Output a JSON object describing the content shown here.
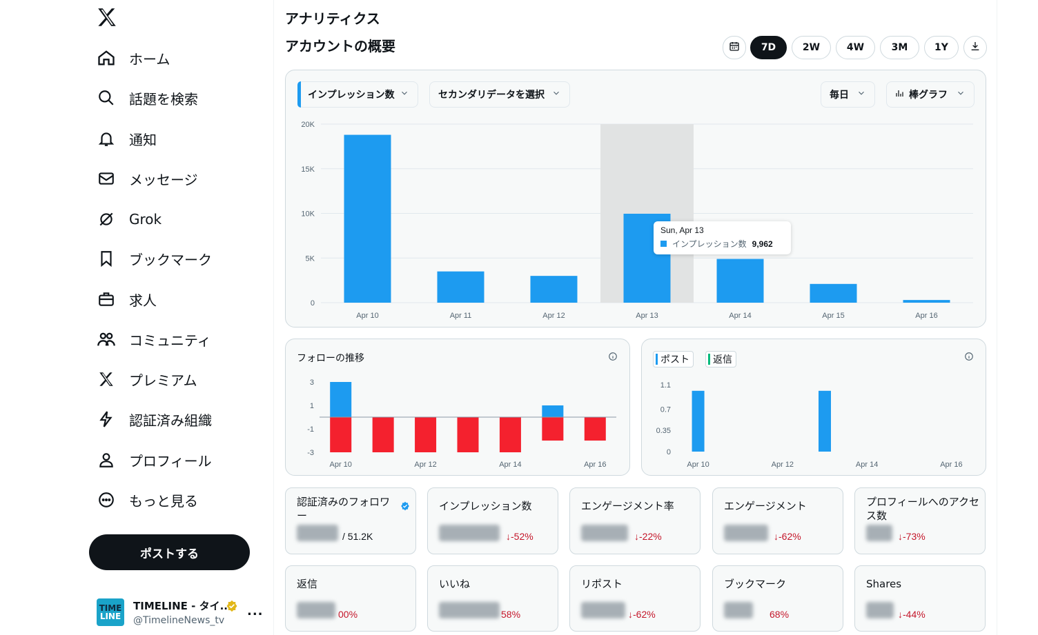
{
  "sidebar": {
    "items": [
      {
        "label": "ホーム",
        "icon": "home-icon"
      },
      {
        "label": "話題を検索",
        "icon": "search-icon"
      },
      {
        "label": "通知",
        "icon": "bell-icon"
      },
      {
        "label": "メッセージ",
        "icon": "mail-icon"
      },
      {
        "label": "Grok",
        "icon": "grok-icon"
      },
      {
        "label": "ブックマーク",
        "icon": "bookmark-icon"
      },
      {
        "label": "求人",
        "icon": "briefcase-icon"
      },
      {
        "label": "コミュニティ",
        "icon": "community-icon"
      },
      {
        "label": "プレミアム",
        "icon": "x-logo-icon"
      },
      {
        "label": "認証済み組織",
        "icon": "lightning-icon"
      },
      {
        "label": "プロフィール",
        "icon": "person-icon"
      },
      {
        "label": "もっと見る",
        "icon": "more-circle-icon"
      }
    ],
    "post_button": "ポストする",
    "account": {
      "name": "TIMELINE - タイ...",
      "handle": "@TimelineNews_tv",
      "avatar_line1": "TIME",
      "avatar_line2": "LINE",
      "more": "..."
    }
  },
  "page": {
    "title": "アナリティクス",
    "section": "アカウントの概要"
  },
  "range_buttons": [
    "7D",
    "2W",
    "4W",
    "3M",
    "1Y"
  ],
  "range_active": "7D",
  "controls": {
    "metric": "インプレッション数",
    "secondary": "セカンダリデータを選択",
    "interval": "毎日",
    "chart_type": "棒グラフ"
  },
  "tooltip": {
    "date": "Sun, Apr 13",
    "label": "インプレッション数",
    "value": "9,962"
  },
  "follow_card": {
    "title": "フォローの推移"
  },
  "posts_card": {
    "chip_posts": "ポスト",
    "chip_replies": "返信"
  },
  "stats": [
    {
      "title": "認証済みのフォロワー",
      "sub": "/ 51.2K",
      "delta": "",
      "verified": true
    },
    {
      "title": "インプレッション数",
      "sub": "",
      "delta": "↓-52%"
    },
    {
      "title": "エンゲージメント率",
      "sub": "",
      "delta": "↓-22%"
    },
    {
      "title": "エンゲージメント",
      "sub": "",
      "delta": "↓-62%"
    },
    {
      "title": "プロフィールへのアクセス数",
      "sub": "",
      "delta": "↓-73%"
    },
    {
      "title": "返信",
      "sub": "",
      "delta": "00%"
    },
    {
      "title": "いいね",
      "sub": "",
      "delta": "58%"
    },
    {
      "title": "リポスト",
      "sub": "",
      "delta": "↓-62%"
    },
    {
      "title": "ブックマーク",
      "sub": "",
      "delta": "68%"
    },
    {
      "title": "Shares",
      "sub": "",
      "delta": "↓-44%"
    }
  ],
  "colors": {
    "accent": "#1d9bf0",
    "negative": "#f4212e",
    "green": "#00ba7c",
    "delta": "#c4162a"
  },
  "chart_data": [
    {
      "type": "bar",
      "categories": [
        "Apr 10",
        "Apr 11",
        "Apr 12",
        "Apr 13",
        "Apr 14",
        "Apr 15",
        "Apr 16"
      ],
      "series": [
        {
          "name": "インプレッション数",
          "values": [
            18800,
            3500,
            3000,
            9962,
            4900,
            2100,
            300
          ]
        }
      ],
      "yticks": [
        "0",
        "5K",
        "10K",
        "15K",
        "20K"
      ],
      "ylim": [
        0,
        20000
      ],
      "highlight": "Apr 13"
    },
    {
      "type": "bar",
      "categories": [
        "Apr 10",
        "Apr 11",
        "Apr 12",
        "Apr 13",
        "Apr 14",
        "Apr 15",
        "Apr 16"
      ],
      "xticks": [
        "Apr 10",
        "Apr 12",
        "Apr 14",
        "Apr 16"
      ],
      "series": [
        {
          "values": [
            3,
            0,
            0,
            0,
            0,
            1,
            0
          ]
        },
        {
          "values": [
            -3,
            -3,
            -3,
            -3,
            -3,
            -2,
            -2
          ]
        }
      ],
      "yticks": [
        "-3",
        "-1",
        "1",
        "3"
      ],
      "ylim": [
        -3,
        3
      ]
    },
    {
      "type": "bar",
      "categories": [
        "Apr 10",
        "Apr 11",
        "Apr 12",
        "Apr 13",
        "Apr 14",
        "Apr 15",
        "Apr 16"
      ],
      "xticks": [
        "Apr 10",
        "Apr 12",
        "Apr 14",
        "Apr 16"
      ],
      "series": [
        {
          "name": "ポスト",
          "values": [
            1,
            0,
            0,
            1,
            0,
            0,
            0
          ]
        }
      ],
      "yticks": [
        "0",
        "0.35",
        "0.7",
        "1.1"
      ],
      "ylim": [
        0,
        1.1
      ]
    }
  ]
}
